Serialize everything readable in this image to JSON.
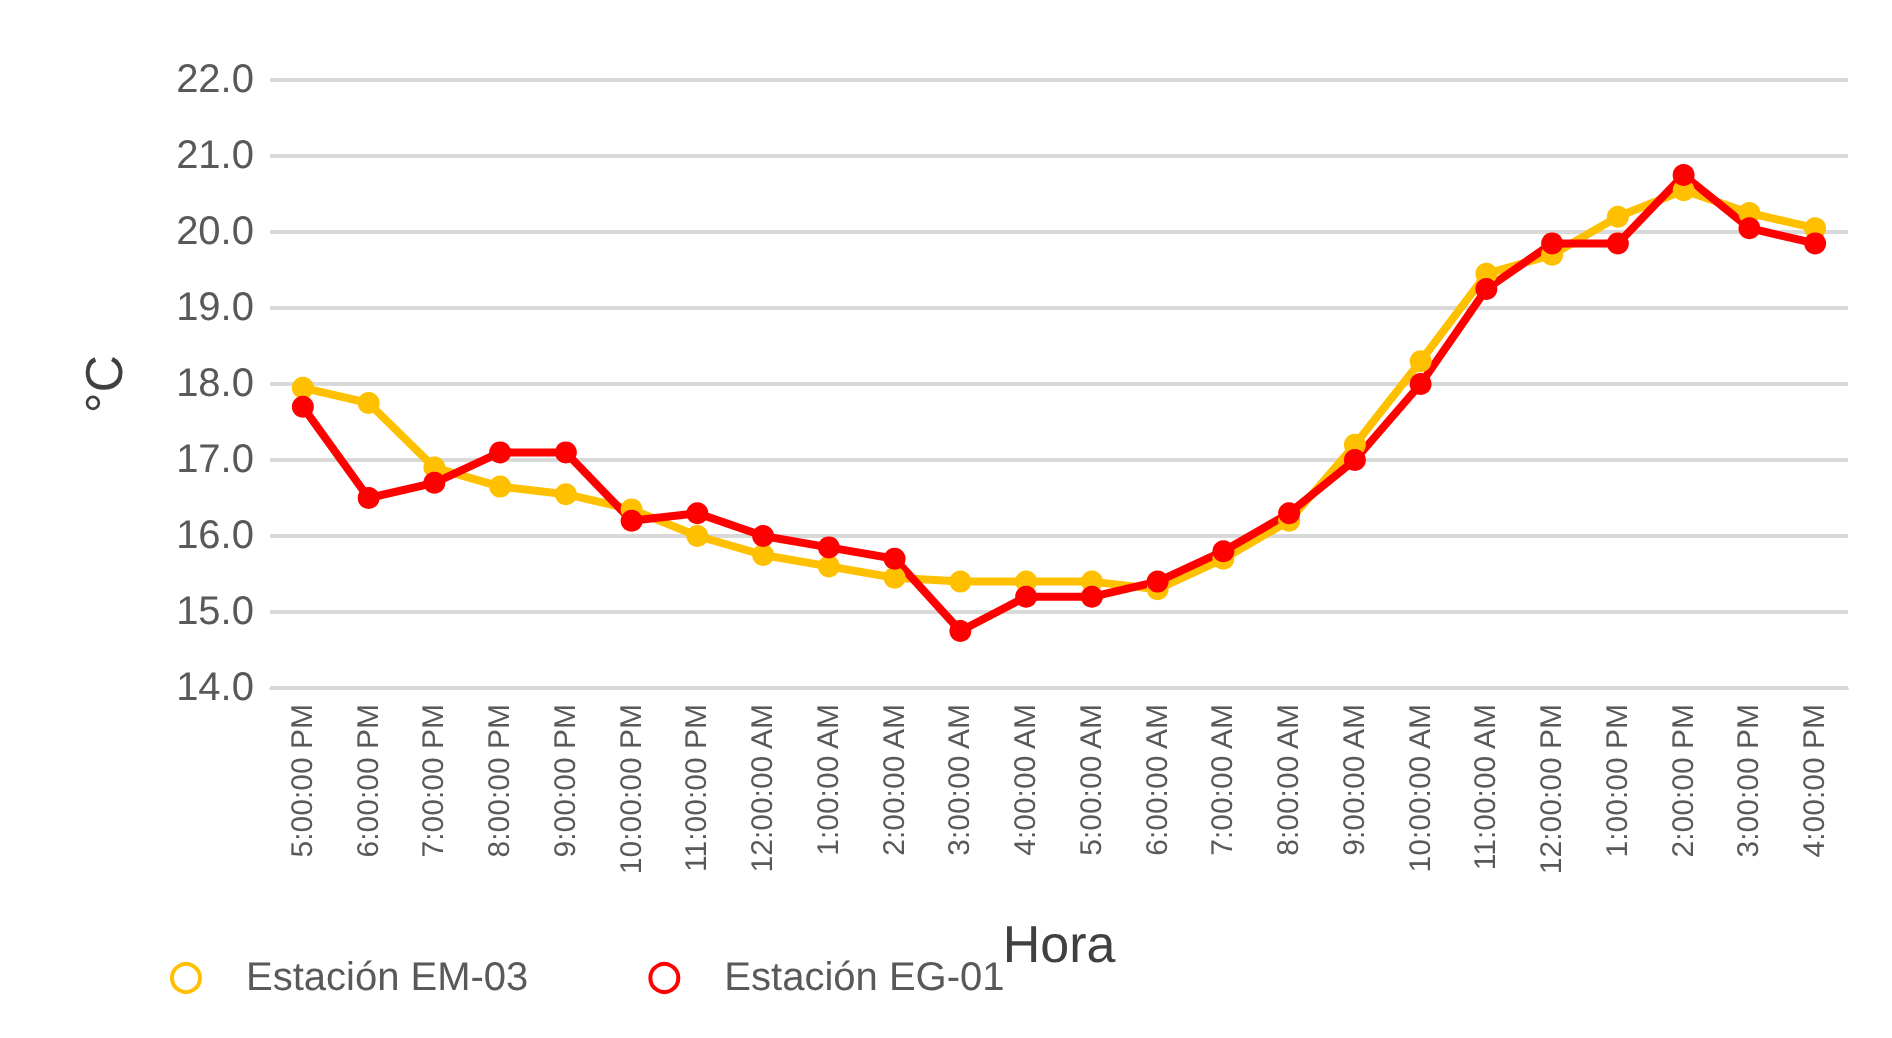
{
  "chart_data": {
    "type": "line",
    "xlabel": "Hora",
    "ylabel": "°C",
    "categories": [
      "5:00:00 PM",
      "6:00:00 PM",
      "7:00:00 PM",
      "8:00:00 PM",
      "9:00:00 PM",
      "10:00:00 PM",
      "11:00:00 PM",
      "12:00:00 AM",
      "1:00:00 AM",
      "2:00:00 AM",
      "3:00:00 AM",
      "4:00:00 AM",
      "5:00:00 AM",
      "6:00:00 AM",
      "7:00:00 AM",
      "8:00:00 AM",
      "9:00:00 AM",
      "10:00:00 AM",
      "11:00:00 AM",
      "12:00:00 PM",
      "1:00:00 PM",
      "2:00:00 PM",
      "3:00:00 PM",
      "4:00:00 PM"
    ],
    "series": [
      {
        "name": "Estación EM-03",
        "color": "#ffc000",
        "values": [
          17.95,
          17.75,
          16.9,
          16.65,
          16.55,
          16.35,
          16.0,
          15.75,
          15.6,
          15.45,
          15.4,
          15.4,
          15.4,
          15.3,
          15.7,
          16.2,
          17.2,
          18.3,
          19.45,
          19.7,
          20.2,
          20.55,
          20.25,
          20.05
        ]
      },
      {
        "name": "Estación EG-01",
        "color": "#ff0000",
        "values": [
          17.7,
          16.5,
          16.7,
          17.1,
          17.1,
          16.2,
          16.3,
          16.0,
          15.85,
          15.7,
          14.75,
          15.2,
          15.2,
          15.4,
          15.8,
          16.3,
          17.0,
          18.0,
          19.25,
          19.85,
          19.85,
          20.75,
          20.05,
          19.85
        ]
      }
    ],
    "ylim": [
      14,
      22
    ],
    "yticks": [
      {
        "value": 14,
        "label": "14.0"
      },
      {
        "value": 15,
        "label": "15.0"
      },
      {
        "value": 16,
        "label": "16.0"
      },
      {
        "value": 17,
        "label": "17.0"
      },
      {
        "value": 18,
        "label": "18.0"
      },
      {
        "value": 19,
        "label": "19.0"
      },
      {
        "value": 20,
        "label": "20.0"
      },
      {
        "value": 21,
        "label": "21.0"
      },
      {
        "value": 22,
        "label": "22.0"
      }
    ],
    "grid": "y",
    "legend": "bottom",
    "marker": "circle",
    "line_style": "solid"
  }
}
